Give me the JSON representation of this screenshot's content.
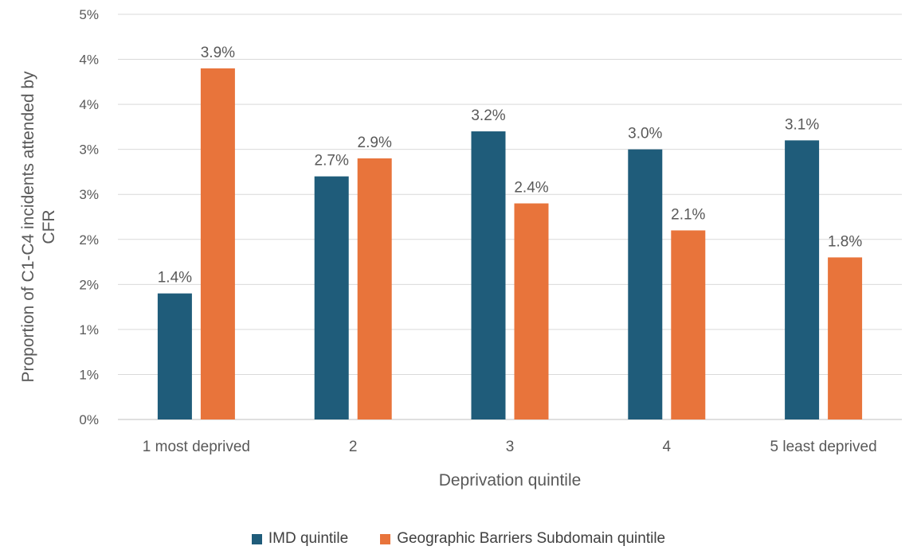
{
  "chart_data": {
    "type": "bar",
    "title": "",
    "xlabel": "Deprivation quintile",
    "ylabel_lines": [
      "Proportion of C1-C4 incidents attended by",
      "CFR"
    ],
    "categories": [
      "1 most deprived",
      "2",
      "3",
      "4",
      "5 least deprived"
    ],
    "series": [
      {
        "name": "IMD quintile",
        "color": "#1f5c7a",
        "values": [
          1.4,
          2.7,
          3.2,
          3.0,
          3.1
        ],
        "labels": [
          "1.4%",
          "2.7%",
          "3.2%",
          "3.0%",
          "3.1%"
        ]
      },
      {
        "name": "Geographic Barriers Subdomain quintile",
        "color": "#e8743b",
        "values": [
          3.9,
          2.9,
          2.4,
          2.1,
          1.8
        ],
        "labels": [
          "3.9%",
          "2.9%",
          "2.4%",
          "2.1%",
          "1.8%"
        ]
      }
    ],
    "ylim": [
      0,
      4.5
    ],
    "ytick_values": [
      0,
      0.5,
      1,
      1.5,
      2,
      2.5,
      3,
      3.5,
      4,
      4.5
    ],
    "ytick_labels": [
      "0%",
      "1%",
      "1%",
      "2%",
      "2%",
      "3%",
      "3%",
      "4%",
      "4%",
      "5%"
    ],
    "grid": true,
    "legend_position": "bottom"
  }
}
